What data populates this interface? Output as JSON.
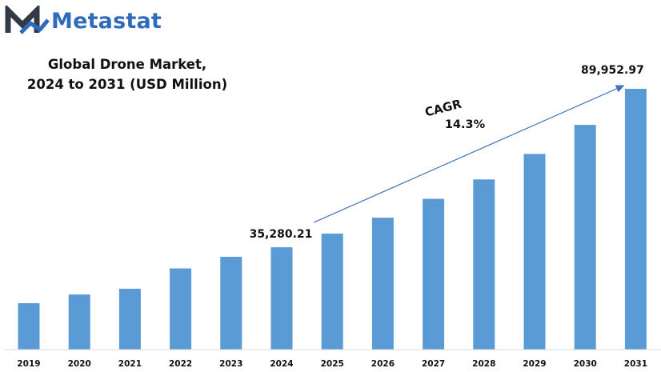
{
  "brand": {
    "name": "Metastat",
    "accent": "#2f6bbd",
    "icon": "metastat-logo-icon"
  },
  "header": {
    "title_line1": "Global Drone Market,",
    "title_line2": "2024 to 2031 (USD Million)"
  },
  "annotations": {
    "cagr_label": "CAGR",
    "cagr_value": "14.3%",
    "start_value": "35,280.21",
    "end_value": "89,952.97"
  },
  "chart_data": {
    "type": "bar",
    "title": "Global Drone Market, 2024 to 2031 (USD Million)",
    "xlabel": "",
    "ylabel": "",
    "categories": [
      "2019",
      "2020",
      "2021",
      "2022",
      "2023",
      "2024",
      "2025",
      "2026",
      "2027",
      "2028",
      "2029",
      "2030",
      "2031"
    ],
    "values": [
      16000,
      19000,
      21000,
      28000,
      32000,
      35280.21,
      40000,
      45500,
      52000,
      58700,
      67500,
      77500,
      89952.97
    ],
    "data_labels": [
      {
        "category": "2024",
        "text": "35,280.21"
      },
      {
        "category": "2031",
        "text": "89,952.97"
      }
    ],
    "ylim": [
      0,
      89952.97
    ],
    "bar_color": "#5b9bd5",
    "grid": false,
    "legend": "none"
  }
}
